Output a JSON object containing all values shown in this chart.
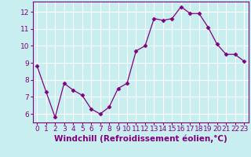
{
  "x": [
    0,
    1,
    2,
    3,
    4,
    5,
    6,
    7,
    8,
    9,
    10,
    11,
    12,
    13,
    14,
    15,
    16,
    17,
    18,
    19,
    20,
    21,
    22,
    23
  ],
  "y": [
    8.8,
    7.3,
    5.8,
    7.8,
    7.4,
    7.1,
    6.3,
    6.0,
    6.4,
    7.5,
    7.8,
    9.7,
    10.0,
    11.6,
    11.5,
    11.6,
    12.3,
    11.9,
    11.9,
    11.1,
    10.1,
    9.5,
    9.5,
    9.1
  ],
  "ylim": [
    5.5,
    12.6
  ],
  "xlim": [
    -0.5,
    23.5
  ],
  "yticks": [
    6,
    7,
    8,
    9,
    10,
    11,
    12
  ],
  "xticks": [
    0,
    1,
    2,
    3,
    4,
    5,
    6,
    7,
    8,
    9,
    10,
    11,
    12,
    13,
    14,
    15,
    16,
    17,
    18,
    19,
    20,
    21,
    22,
    23
  ],
  "xlabel": "Windchill (Refroidissement éolien,°C)",
  "line_color": "#800080",
  "marker": "D",
  "marker_size": 2.5,
  "bg_color": "#c8eef0",
  "grid_color": "#ffffff",
  "xlabel_fontsize": 7.5,
  "tick_fontsize": 6.5,
  "spine_color": "#800080"
}
